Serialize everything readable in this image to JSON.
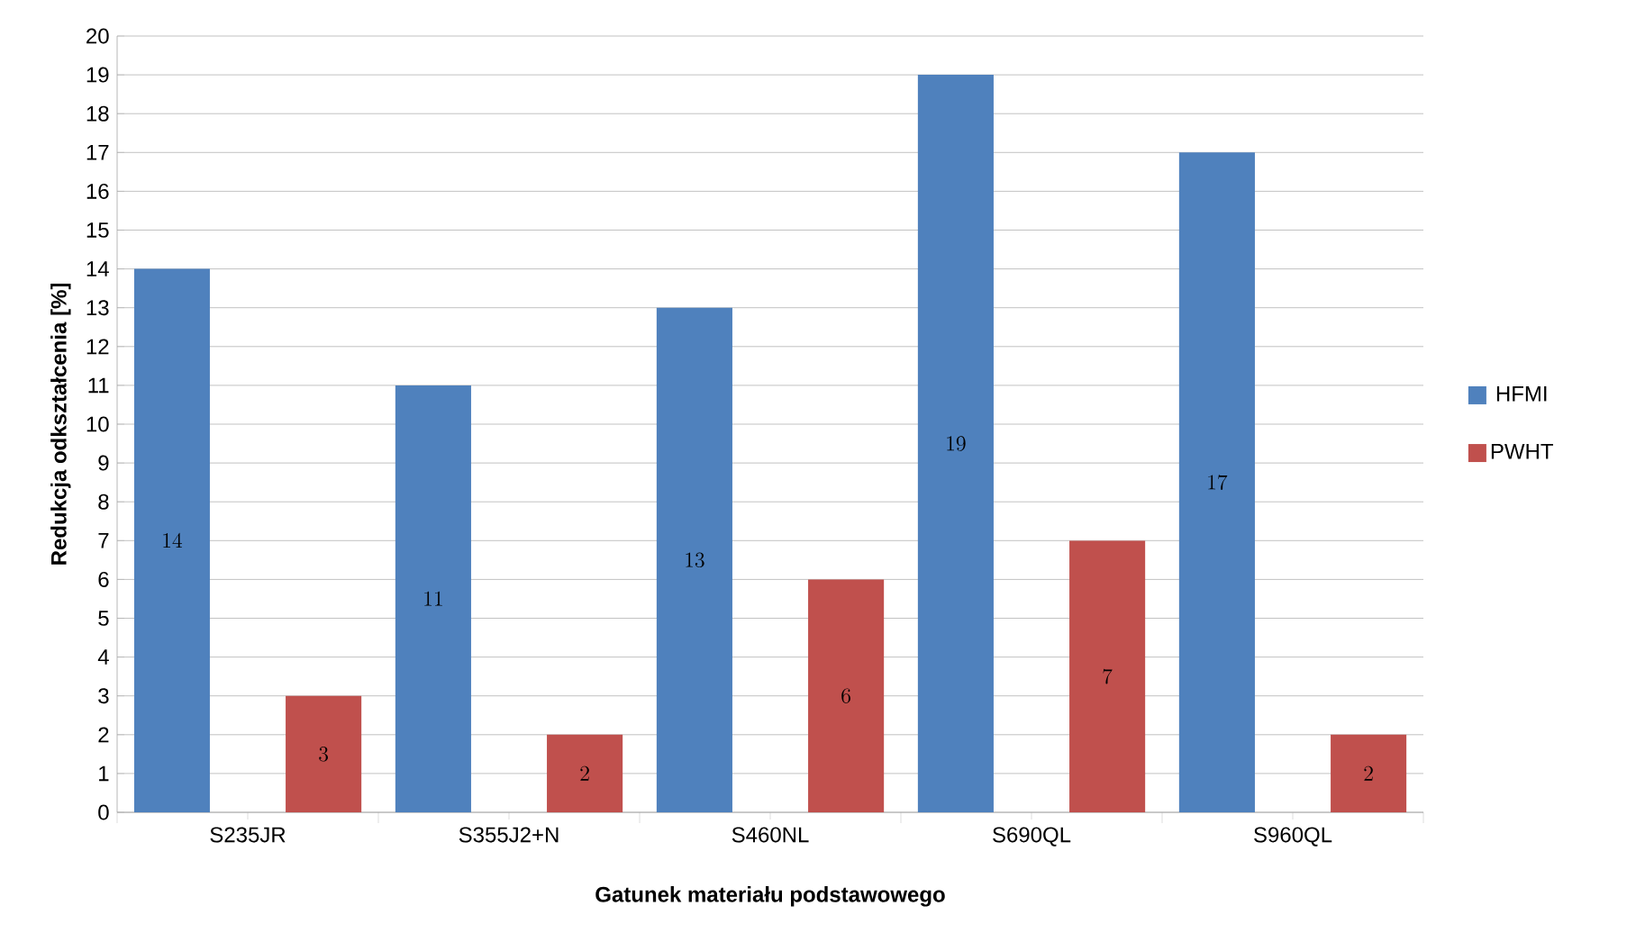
{
  "chart_data": {
    "type": "bar",
    "xlabel": "Gatunek materiału podstawowego",
    "ylabel": "Redukcja odkształcenia [%]",
    "categories": [
      "S235JR",
      "S355J2+N",
      "S460NL",
      "S690QL",
      "S960QL"
    ],
    "series": [
      {
        "name": "HFMI",
        "color": "#4f81bd",
        "values": [
          14,
          11,
          13,
          19,
          17
        ]
      },
      {
        "name": "PWHT",
        "color": "#c0504d",
        "values": [
          3,
          2,
          6,
          7,
          2
        ]
      }
    ],
    "ylim": [
      0,
      20
    ],
    "yticks": [
      0,
      1,
      2,
      3,
      4,
      5,
      6,
      7,
      8,
      9,
      10,
      11,
      12,
      13,
      14,
      15,
      16,
      17,
      18,
      19,
      20
    ],
    "grid": "y",
    "legend": "right",
    "data_labels": true
  }
}
